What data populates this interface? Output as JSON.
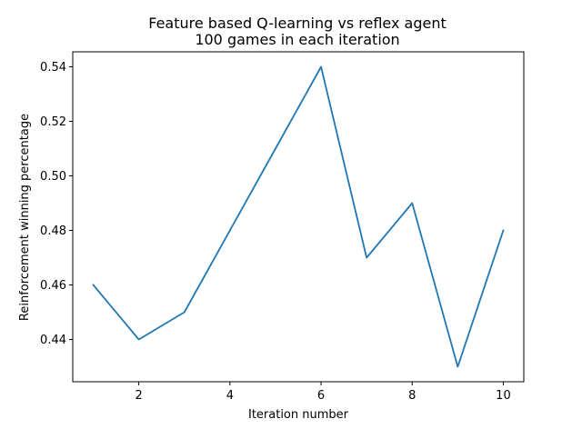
{
  "chart_data": {
    "type": "line",
    "title": "Feature based Q-learning vs reflex agent",
    "subtitle": "100 games in each iteration",
    "xlabel": "Iteration number",
    "ylabel": "Reinforcement winning percentage",
    "xlim": [
      0.55,
      10.45
    ],
    "ylim": [
      0.4245,
      0.5455
    ],
    "x_ticks": [
      2,
      4,
      6,
      8,
      10
    ],
    "x_tick_labels": [
      "2",
      "4",
      "6",
      "8",
      "10"
    ],
    "y_ticks": [
      0.44,
      0.46,
      0.48,
      0.5,
      0.52,
      0.54
    ],
    "y_tick_labels": [
      "0.44",
      "0.46",
      "0.48",
      "0.50",
      "0.52",
      "0.54"
    ],
    "grid": false,
    "series": [
      {
        "color": "#1f77b4",
        "x": [
          1,
          2,
          3,
          4,
          5,
          6,
          7,
          8,
          9,
          10
        ],
        "y": [
          0.46,
          0.44,
          0.45,
          0.48,
          0.51,
          0.54,
          0.47,
          0.49,
          0.43,
          0.48
        ]
      }
    ]
  }
}
